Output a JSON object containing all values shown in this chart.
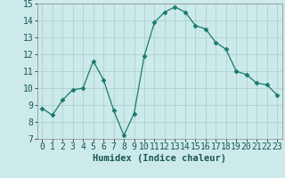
{
  "x": [
    0,
    1,
    2,
    3,
    4,
    5,
    6,
    7,
    8,
    9,
    10,
    11,
    12,
    13,
    14,
    15,
    16,
    17,
    18,
    19,
    20,
    21,
    22,
    23
  ],
  "y": [
    8.8,
    8.4,
    9.3,
    9.9,
    10.0,
    11.6,
    10.5,
    8.7,
    7.2,
    8.5,
    11.9,
    13.9,
    14.5,
    14.8,
    14.5,
    13.7,
    13.5,
    12.7,
    12.3,
    11.0,
    10.8,
    10.3,
    10.2,
    9.6
  ],
  "line_color": "#1a7a6e",
  "marker": "D",
  "marker_size": 2.5,
  "bg_color": "#cceaea",
  "grid_color": "#b0d0d0",
  "xlabel": "Humidex (Indice chaleur)",
  "xlim": [
    -0.5,
    23.5
  ],
  "ylim": [
    7,
    15
  ],
  "yticks": [
    7,
    8,
    9,
    10,
    11,
    12,
    13,
    14,
    15
  ],
  "xticks": [
    0,
    1,
    2,
    3,
    4,
    5,
    6,
    7,
    8,
    9,
    10,
    11,
    12,
    13,
    14,
    15,
    16,
    17,
    18,
    19,
    20,
    21,
    22,
    23
  ],
  "xlabel_fontsize": 7.5,
  "tick_fontsize": 7.0
}
